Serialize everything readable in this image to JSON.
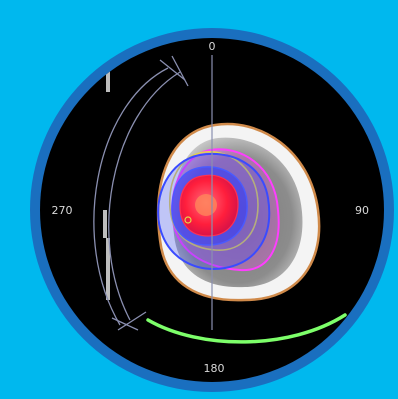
{
  "colors": {
    "page_background": "#00b8ee",
    "ring": "#1a6fbf",
    "viewport_background": "#000000",
    "arc_guide": "#8a8fb0",
    "arc_highlight": "#7dff6a",
    "isodose_outer": "#ff3dff",
    "isodose_blue": "#3a4bff",
    "isodose_yellow": "#e5d44a",
    "isodose_red": "#ff1e3c",
    "skin_contour": "#d08a4a"
  },
  "gantry_angles": {
    "top": "0",
    "right": "90",
    "bottom": "180",
    "left": "270"
  }
}
